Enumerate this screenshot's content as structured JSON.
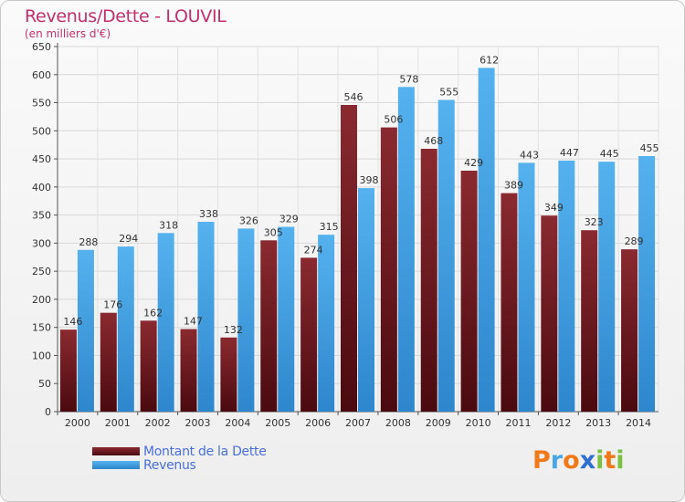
{
  "header": {
    "title": "Revenus/Dette - LOUVIL",
    "subtitle": "(en milliers d'€)"
  },
  "colors": {
    "dette": "#7a1f26",
    "dette_dark": "#4a0a0f",
    "revenus": "#4aa6e6",
    "revenus_dark": "#2e86cc",
    "title": "#c0306e",
    "legend_text": "#4a6fd8"
  },
  "legend": {
    "dette_label": "Montant de la Dette",
    "revenus_label": "Revenus"
  },
  "logo": {
    "text": "Proxiti",
    "letters": [
      "P",
      "r",
      "o",
      "x",
      "i",
      "t",
      "i"
    ],
    "letter_colors": [
      "#f07a1a",
      "#4aa6e6",
      "#f07a1a",
      "#2e6fcf",
      "#7ac142",
      "#f07a1a",
      "#7ac142"
    ]
  },
  "chart_data": {
    "type": "bar",
    "categories": [
      "2000",
      "2001",
      "2002",
      "2003",
      "2004",
      "2005",
      "2006",
      "2007",
      "2008",
      "2009",
      "2010",
      "2011",
      "2012",
      "2013",
      "2014"
    ],
    "series": [
      {
        "name": "Montant de la Dette",
        "values": [
          146,
          176,
          162,
          147,
          132,
          305,
          274,
          546,
          506,
          468,
          429,
          389,
          349,
          323,
          289
        ]
      },
      {
        "name": "Revenus",
        "values": [
          288,
          294,
          318,
          338,
          326,
          329,
          315,
          398,
          578,
          555,
          612,
          443,
          447,
          445,
          455
        ]
      }
    ],
    "ylim": [
      0,
      650
    ],
    "yticks": [
      "0",
      "50",
      "100",
      "150",
      "200",
      "250",
      "300",
      "350",
      "400",
      "450",
      "500",
      "550",
      "600",
      "650"
    ],
    "grid": true,
    "legend_position": "bottom-left"
  }
}
